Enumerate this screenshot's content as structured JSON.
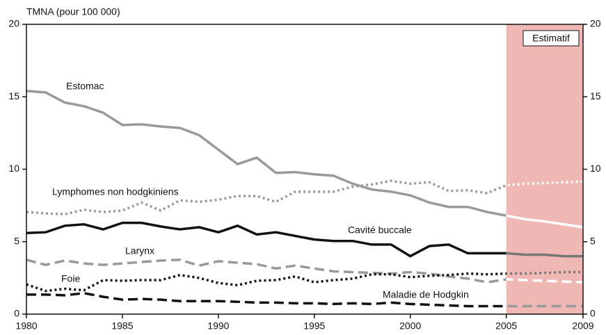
{
  "chart_data": {
    "type": "line",
    "y_axis_label": "TMNA (pour 100 000)",
    "annotation": "Estimatif",
    "shaded_xrange": [
      2005,
      2009
    ],
    "shade_color": "#f0b8b4",
    "x": [
      1980,
      1981,
      1982,
      1983,
      1984,
      1985,
      1986,
      1987,
      1988,
      1989,
      1990,
      1991,
      1992,
      1993,
      1994,
      1995,
      1996,
      1997,
      1998,
      1999,
      2000,
      2001,
      2002,
      2003,
      2004,
      2005,
      2006,
      2007,
      2008,
      2009
    ],
    "xlim": [
      1980,
      2009
    ],
    "xticks": [
      1980,
      1985,
      1990,
      1995,
      2000,
      2005,
      2009
    ],
    "ylim": [
      0,
      20
    ],
    "yticks": [
      0,
      5,
      10,
      15,
      20
    ],
    "y2lim": [
      0,
      20
    ],
    "y2ticks": [
      0,
      5,
      10,
      15,
      20
    ],
    "series": [
      {
        "name": "Estomac",
        "color": "#999999",
        "estimate_color": "#ffffff",
        "dash": "solid",
        "values": [
          15.4,
          15.3,
          14.6,
          14.35,
          13.9,
          13.05,
          13.1,
          12.95,
          12.85,
          12.35,
          11.35,
          10.35,
          10.8,
          9.75,
          9.8,
          9.65,
          9.55,
          9.0,
          8.6,
          8.45,
          8.2,
          7.7,
          7.4,
          7.4,
          7.05,
          6.8,
          6.55,
          6.4,
          6.2,
          6.0
        ]
      },
      {
        "name": "Lymphomes non hodgkiniens",
        "color": "#999999",
        "estimate_color": "#ffffff",
        "dash": "dotted",
        "values": [
          7.05,
          6.95,
          6.9,
          7.2,
          7.05,
          7.15,
          7.7,
          7.15,
          7.85,
          7.75,
          7.9,
          8.15,
          8.15,
          7.75,
          8.45,
          8.45,
          8.45,
          8.8,
          8.95,
          9.2,
          9.0,
          9.1,
          8.5,
          8.55,
          8.35,
          8.9,
          9.0,
          9.05,
          9.1,
          9.15
        ]
      },
      {
        "name": "Cavité buccale",
        "color": "#111111",
        "estimate_color": "#777777",
        "dash": "solid",
        "values": [
          5.6,
          5.65,
          6.1,
          6.2,
          5.85,
          6.3,
          6.3,
          6.05,
          5.85,
          6.0,
          5.65,
          6.1,
          5.5,
          5.65,
          5.4,
          5.15,
          5.05,
          5.05,
          4.8,
          4.8,
          4.0,
          4.7,
          4.8,
          4.2,
          4.2,
          4.2,
          4.1,
          4.1,
          4.0,
          4.0
        ]
      },
      {
        "name": "Larynx",
        "color": "#999999",
        "estimate_color": "#ffffff",
        "dash": "dashed",
        "values": [
          3.75,
          3.4,
          3.7,
          3.5,
          3.4,
          3.5,
          3.6,
          3.7,
          3.75,
          3.35,
          3.65,
          3.55,
          3.45,
          3.15,
          3.35,
          3.15,
          2.95,
          2.9,
          2.85,
          2.8,
          2.9,
          2.8,
          2.6,
          2.45,
          2.2,
          2.4,
          2.35,
          2.3,
          2.25,
          2.2
        ]
      },
      {
        "name": "Foie",
        "color": "#111111",
        "estimate_color": "#777777",
        "dash": "dotted",
        "values": [
          2.05,
          1.6,
          1.75,
          1.65,
          2.35,
          2.3,
          2.35,
          2.35,
          2.7,
          2.5,
          2.15,
          2.0,
          2.3,
          2.35,
          2.6,
          2.2,
          2.35,
          2.45,
          2.75,
          2.75,
          2.55,
          2.65,
          2.7,
          2.8,
          2.75,
          2.8,
          2.8,
          2.85,
          2.9,
          2.9
        ]
      },
      {
        "name": "Maladie de Hodgkin",
        "color": "#111111",
        "estimate_color": "#999999",
        "dash": "dashed",
        "values": [
          1.35,
          1.35,
          1.3,
          1.45,
          1.2,
          1.0,
          1.05,
          1.0,
          0.9,
          0.9,
          0.9,
          0.85,
          0.8,
          0.8,
          0.75,
          0.75,
          0.7,
          0.75,
          0.7,
          0.8,
          0.7,
          0.65,
          0.6,
          0.55,
          0.55,
          0.55,
          0.55,
          0.55,
          0.55,
          0.55
        ]
      }
    ]
  }
}
